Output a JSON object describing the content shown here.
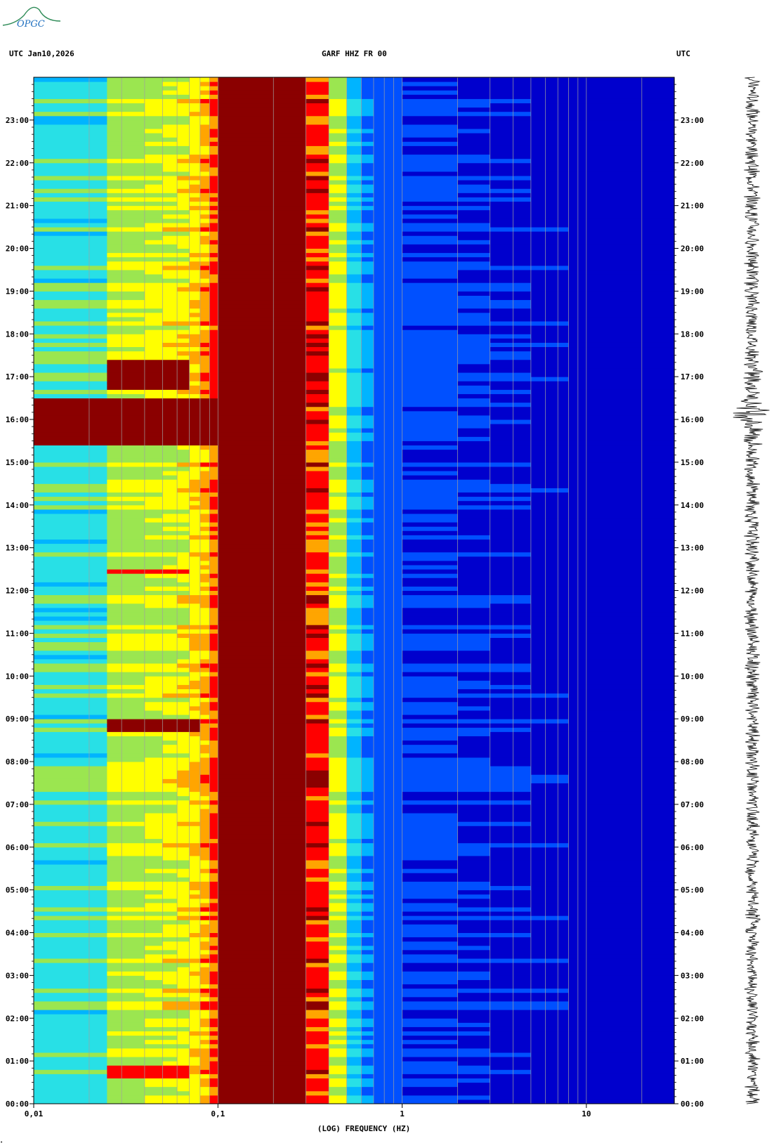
{
  "header": {
    "left": "UTC  Jan10,2026",
    "center": "GARF HHZ FR 00",
    "right": "UTC"
  },
  "logo": {
    "text": "OPGC",
    "icon": "opgc-logo-icon"
  },
  "colors": {
    "spectrum": [
      "#00008b",
      "#0000cd",
      "#0050ff",
      "#00b4ff",
      "#28e0e6",
      "#9be650",
      "#ffff00",
      "#ffa500",
      "#ff0000",
      "#8b0000"
    ],
    "grid": "#a0a0a0",
    "trace": "#000000"
  },
  "chart_data": {
    "type": "heatmap",
    "title": "GARF HHZ FR 00",
    "xlabel": "(LOG) FREQUENCY (HZ)",
    "ylabel": "UTC",
    "x_scale": "log",
    "xlim": [
      0.01,
      30
    ],
    "x_ticks": [
      {
        "value": 0.01,
        "label": "0,01"
      },
      {
        "value": 0.1,
        "label": "0,1"
      },
      {
        "value": 1,
        "label": "1"
      },
      {
        "value": 10,
        "label": "10"
      }
    ],
    "y_ticks": [
      "00:00",
      "01:00",
      "02:00",
      "03:00",
      "04:00",
      "05:00",
      "06:00",
      "07:00",
      "08:00",
      "09:00",
      "10:00",
      "11:00",
      "12:00",
      "13:00",
      "14:00",
      "15:00",
      "16:00",
      "17:00",
      "18:00",
      "19:00",
      "20:00",
      "21:00",
      "22:00",
      "23:00"
    ],
    "ylim_hours": [
      0,
      24
    ],
    "grid": true,
    "frequency_bands_hz": [
      0.01,
      0.02,
      0.025,
      0.03,
      0.04,
      0.05,
      0.06,
      0.07,
      0.08,
      0.09,
      0.1,
      0.12,
      0.2,
      0.3,
      0.4,
      0.5,
      0.6,
      0.7,
      0.8,
      0.9,
      1,
      2,
      3,
      4,
      5,
      6,
      7,
      8,
      9,
      10,
      20,
      30
    ],
    "base_level_by_band": [
      4.2,
      4.2,
      5.3,
      5.3,
      5.6,
      5.8,
      6.0,
      6.4,
      6.9,
      7.7,
      9.0,
      9.0,
      9.0,
      8.0,
      5.6,
      3.6,
      2.6,
      2.0,
      1.9,
      1.8,
      1.6,
      1.5,
      1.4,
      1.4,
      1.3,
      1.3,
      1.3,
      1.2,
      1.2,
      1.1,
      1.0
    ],
    "level_scale": [
      0,
      9
    ],
    "events": [
      {
        "start_hour": 15.35,
        "end_hour": 16.45,
        "low_hz": 0.01,
        "high_hz": 0.1,
        "level": 9
      },
      {
        "start_hour": 16.7,
        "end_hour": 17.4,
        "low_hz": 0.025,
        "high_hz": 0.07,
        "level": 8.5
      },
      {
        "start_hour": 8.75,
        "end_hour": 9.0,
        "low_hz": 0.025,
        "high_hz": 0.08,
        "level": 8.8
      },
      {
        "start_hour": 12.35,
        "end_hour": 12.5,
        "low_hz": 0.025,
        "high_hz": 0.07,
        "level": 8.0
      },
      {
        "start_hour": 0.65,
        "end_hour": 0.85,
        "low_hz": 0.025,
        "high_hz": 0.07,
        "level": 8.3
      }
    ],
    "trace_events": [
      {
        "hour": 16.15,
        "amplitude": 1.0
      },
      {
        "hour": 15.6,
        "amplitude": 0.4
      },
      {
        "hour": 17.0,
        "amplitude": 0.35
      }
    ]
  }
}
